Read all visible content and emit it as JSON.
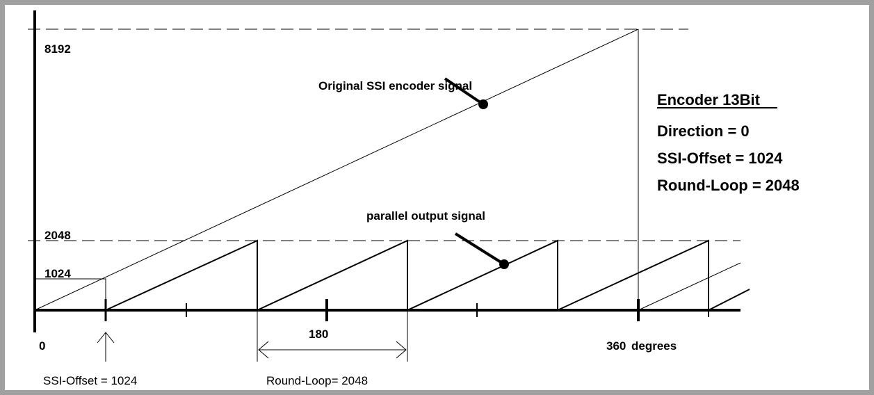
{
  "axis_labels": {
    "y_top": "8192",
    "y_round": "2048",
    "y_offset": "1024",
    "x_zero": "0",
    "x_half": "180",
    "x_full": "360",
    "x_unit": "degrees"
  },
  "signals": {
    "original": "Original SSI encoder signal",
    "parallel": "parallel output signal"
  },
  "settings_box": {
    "title": "Encoder 13Bit",
    "lines": [
      "Direction = 0",
      "SSI-Offset = 1024",
      "Round-Loop = 2048"
    ]
  },
  "annotations": {
    "offset": "SSI-Offset = 1024",
    "round_loop": "Round-Loop= 2048"
  }
}
